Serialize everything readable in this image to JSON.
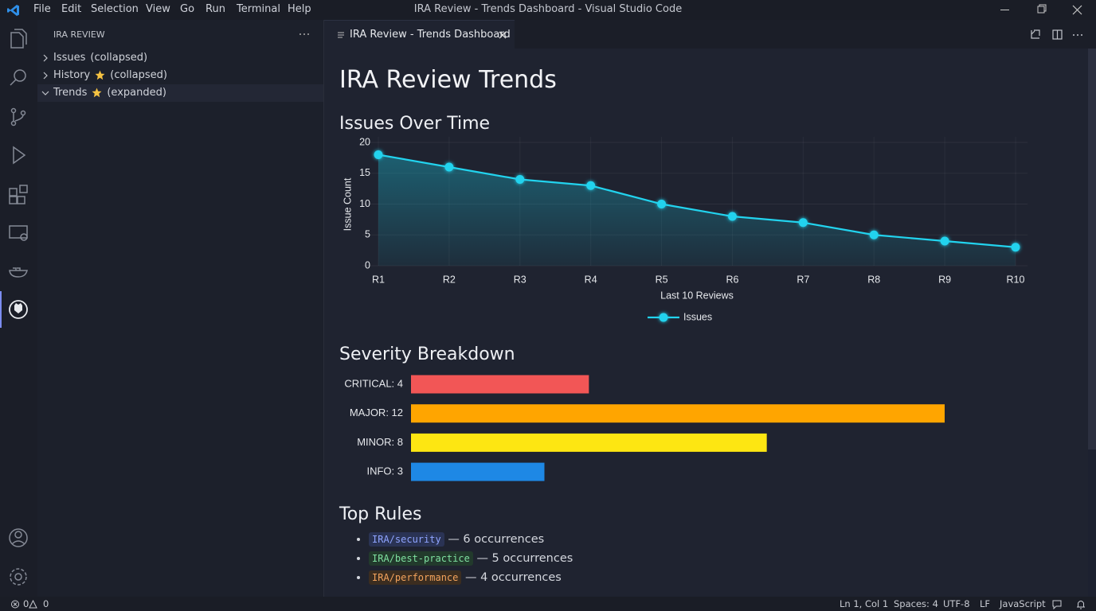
{
  "window": {
    "title": "IRA Review - Trends Dashboard - Visual Studio Code",
    "menu": [
      "File",
      "Edit",
      "Selection",
      "View",
      "Go",
      "Run",
      "Terminal",
      "Help"
    ]
  },
  "sidebar": {
    "title": "IRA REVIEW",
    "items": [
      {
        "label": "Issues",
        "state": "(collapsed)",
        "starred": false,
        "expanded": false
      },
      {
        "label": "History",
        "state": "(collapsed)",
        "starred": true,
        "expanded": false
      },
      {
        "label": "Trends",
        "state": "(expanded)",
        "starred": true,
        "expanded": true
      }
    ]
  },
  "tab": {
    "label": "IRA Review - Trends Dashboard"
  },
  "page": {
    "title": "IRA Review Trends"
  },
  "chart_data": [
    {
      "type": "line",
      "title": "Issues Over Time",
      "x_label": "Last 10 Reviews",
      "y_label": "Issue Count",
      "categories": [
        "R1",
        "R2",
        "R3",
        "R4",
        "R5",
        "R6",
        "R7",
        "R8",
        "R9",
        "R10"
      ],
      "series": [
        {
          "name": "Issues",
          "color": "#22d3ee",
          "values": [
            18,
            16,
            14,
            13,
            10,
            8,
            7,
            5,
            4,
            3
          ]
        }
      ],
      "ylim": [
        0,
        20
      ],
      "yticks": [
        0,
        5,
        10,
        15,
        20
      ],
      "grid": true,
      "legend": "bottom"
    },
    {
      "type": "hbar",
      "title": "Severity Breakdown",
      "categories": [
        "CRITICAL: 4",
        "MAJOR: 12",
        "MINOR: 8",
        "INFO: 3"
      ],
      "values": [
        4,
        12,
        8,
        3
      ],
      "colors": [
        "#f25656",
        "#ffa500",
        "#fde612",
        "#1e88e5"
      ]
    }
  ],
  "rules": {
    "title": "Top Rules",
    "items": [
      {
        "rule": "IRA/security",
        "text": "— 6 occurrences"
      },
      {
        "rule": "IRA/best-practice",
        "text": "— 5 occurrences"
      },
      {
        "rule": "IRA/performance",
        "text": "— 4 occurrences"
      }
    ]
  },
  "status_bar": {
    "errors": "0",
    "warnings": "0",
    "right": [
      "Ln 1, Col 1",
      "Spaces: 4",
      "UTF-8",
      "LF",
      "JavaScript"
    ]
  }
}
